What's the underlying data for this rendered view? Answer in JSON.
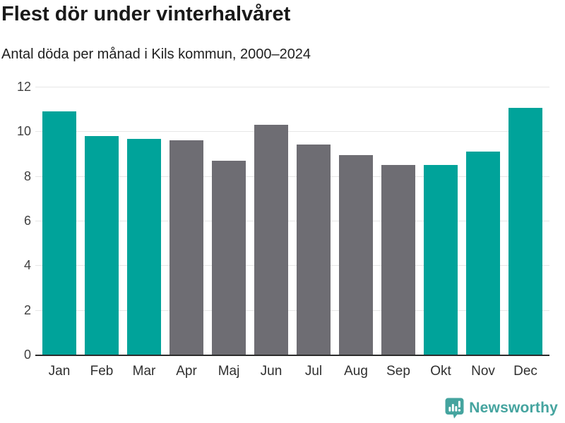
{
  "header": {
    "title": "Flest dör under vinterhalvåret",
    "subtitle": "Antal döda per månad i Kils kommun, 2000–2024"
  },
  "chart_data": {
    "type": "bar",
    "title": "Flest dör under vinterhalvåret",
    "subtitle": "Antal döda per månad i Kils kommun, 2000–2024",
    "categories": [
      "Jan",
      "Feb",
      "Mar",
      "Apr",
      "Maj",
      "Jun",
      "Jul",
      "Aug",
      "Sep",
      "Okt",
      "Nov",
      "Dec"
    ],
    "values": [
      10.9,
      9.8,
      9.65,
      9.6,
      8.7,
      10.3,
      9.4,
      8.95,
      8.5,
      8.5,
      9.1,
      11.05
    ],
    "bar_roles": [
      "highlight",
      "highlight",
      "highlight",
      "default",
      "default",
      "default",
      "default",
      "default",
      "default",
      "highlight",
      "highlight",
      "highlight"
    ],
    "xlabel": "",
    "ylabel": "",
    "ylim": [
      0,
      12
    ],
    "yticks": [
      0,
      2,
      4,
      6,
      8,
      10,
      12
    ],
    "grid": true,
    "legend": "none",
    "palette": {
      "highlight": "#00a39a",
      "default": "#6e6d73"
    }
  },
  "style_colors": {
    "gridline": "#e7e7e7",
    "axis_line": "#2b2b2b",
    "tick_text": "#404040",
    "title_text": "#1a1a1a",
    "brand_teal": "#45a49f"
  },
  "footer": {
    "brand": "Newsworthy"
  }
}
